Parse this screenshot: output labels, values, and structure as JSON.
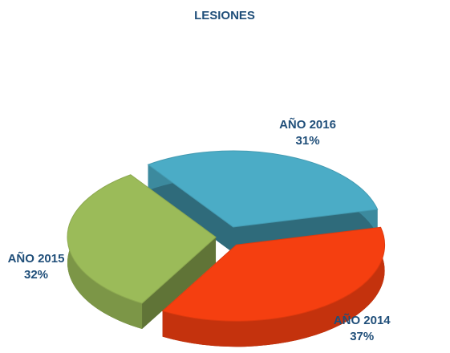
{
  "chart_data": {
    "type": "pie",
    "title": "LESIONES",
    "categories": [
      "AÑO 2014",
      "AÑO 2015",
      "AÑO 2016"
    ],
    "values": [
      37,
      32,
      31
    ],
    "value_labels": [
      "37%",
      "32%",
      "31%"
    ],
    "colors": [
      "#f53f10",
      "#9bbb59",
      "#4bacc6"
    ],
    "legend": false
  }
}
